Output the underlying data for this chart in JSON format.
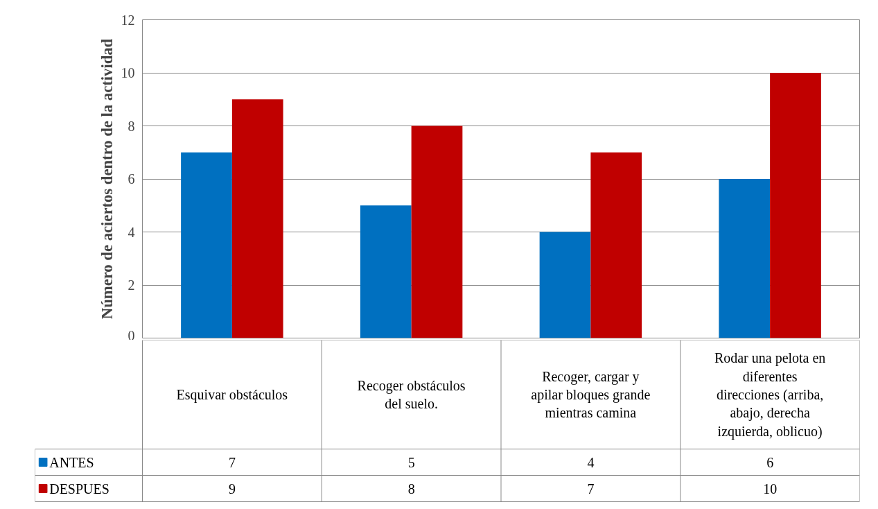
{
  "chart_data": {
    "type": "bar",
    "ylabel": "Número de aciertos dentro de la actividad",
    "categories": [
      "Esquivar obstáculos",
      "Recoger obstáculos del suelo.",
      "Recoger, cargar y apilar bloques grande mientras camina",
      "Rodar una pelota en diferentes direcciones (arriba, abajo, derecha izquierda, oblicuo)"
    ],
    "series": [
      {
        "name": "ANTES",
        "color": "#0070c0",
        "values": [
          7,
          5,
          4,
          6
        ]
      },
      {
        "name": "DESPUES",
        "color": "#c00000",
        "values": [
          9,
          8,
          7,
          10
        ]
      }
    ],
    "ylim": [
      0,
      12
    ],
    "yticks": [
      0,
      2,
      4,
      6,
      8,
      10,
      12
    ],
    "grid": "y",
    "legend": "bottom left",
    "data_labels": true
  }
}
